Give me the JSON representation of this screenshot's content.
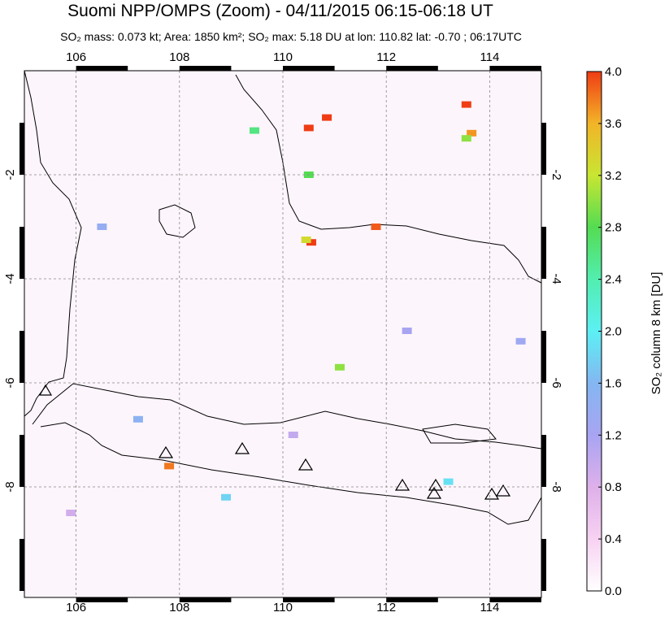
{
  "chart_data": {
    "type": "map",
    "title": "Suomi NPP/OMPS (Zoom) - 04/11/2015 06:15-06:18 UT",
    "subtitle": "SO₂ mass: 0.073 kt; Area: 1850 km²; SO₂ max: 5.18 DU at lon: 110.82 lat: -0.70 ; 06:17UTC",
    "xlim": [
      105,
      115
    ],
    "ylim": [
      -10.125,
      0
    ],
    "xticks": [
      106,
      108,
      110,
      112,
      114
    ],
    "yticks": [
      -2,
      -4,
      -6,
      -8
    ],
    "colorbar_label": "SO₂ column 8 km [DU]",
    "colorbar_lim": [
      0,
      4
    ],
    "colorbar_ticks": [
      {
        "value": 0,
        "label": "0.0"
      },
      {
        "value": 0.4,
        "label": "0.4"
      },
      {
        "value": 0.8,
        "label": "0.8"
      },
      {
        "value": 1.2,
        "label": "1.2"
      },
      {
        "value": 1.6,
        "label": "1.6"
      },
      {
        "value": 2.0,
        "label": "2.0"
      },
      {
        "value": 2.4,
        "label": "2.4"
      },
      {
        "value": 2.8,
        "label": "2.8"
      },
      {
        "value": 3.2,
        "label": "3.2"
      },
      {
        "value": 3.6,
        "label": "3.6"
      },
      {
        "value": 4.0,
        "label": "4.0"
      }
    ],
    "pixels": {
      "lon": [
        110.5,
        110.85,
        113.55,
        113.65,
        113.55,
        110.55,
        110.45,
        107.8,
        110.5,
        111.8,
        111.1,
        109.45,
        106.5,
        108.9,
        112.4,
        113.2,
        110.2,
        107.2,
        114.6,
        105.9
      ],
      "lat": [
        -1.1,
        -0.9,
        -0.65,
        -1.2,
        -1.3,
        -3.3,
        -3.25,
        -7.6,
        -2.0,
        -3.0,
        -5.7,
        -1.15,
        -3.0,
        -8.2,
        -5.0,
        -7.9,
        -7.0,
        -6.7,
        -5.2,
        -8.5
      ],
      "values": [
        4.0,
        4.0,
        4.0,
        3.7,
        3.0,
        4.0,
        3.3,
        3.8,
        2.8,
        3.9,
        3.0,
        2.6,
        1.4,
        1.8,
        1.2,
        1.9,
        1.0,
        1.5,
        1.3,
        0.9
      ]
    }
  }
}
